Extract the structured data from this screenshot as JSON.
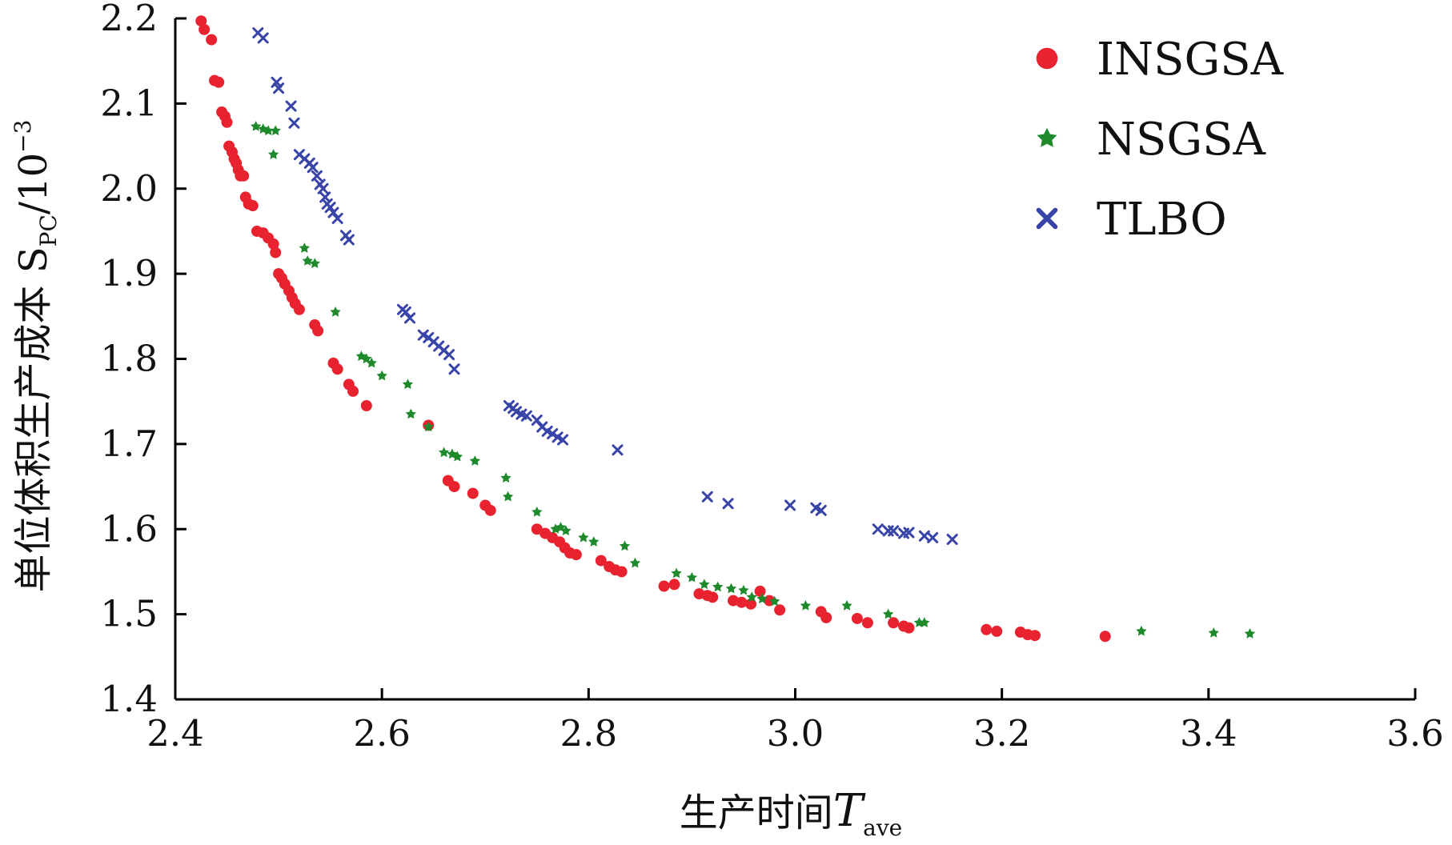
{
  "chart_data": {
    "type": "scatter",
    "xlabel": "生产时间",
    "xlabel_symbol": "T",
    "xlabel_subscript": "ave",
    "ylabel": "单位体积生产成本 S",
    "ylabel_subscript": "PC",
    "ylabel_unit": "/10",
    "ylabel_unit_exp": "−3",
    "xlim": [
      2.4,
      3.6
    ],
    "ylim": [
      1.4,
      2.2
    ],
    "x_ticks": [
      "2.4",
      "2.6",
      "2.8",
      "3.0",
      "3.2",
      "3.4",
      "3.6"
    ],
    "y_ticks": [
      "1.4",
      "1.5",
      "1.6",
      "1.7",
      "1.8",
      "1.9",
      "2.0",
      "2.1",
      "2.2"
    ],
    "grid": false,
    "legend_position": "top-right",
    "series": [
      {
        "name": "INSGSA",
        "color": "#e8222e",
        "marker": "circle",
        "points": [
          [
            2.425,
            2.197
          ],
          [
            2.428,
            2.187
          ],
          [
            2.435,
            2.175
          ],
          [
            2.438,
            2.127
          ],
          [
            2.442,
            2.125
          ],
          [
            2.445,
            2.09
          ],
          [
            2.448,
            2.085
          ],
          [
            2.45,
            2.078
          ],
          [
            2.452,
            2.05
          ],
          [
            2.455,
            2.043
          ],
          [
            2.457,
            2.035
          ],
          [
            2.459,
            2.03
          ],
          [
            2.461,
            2.022
          ],
          [
            2.463,
            2.015
          ],
          [
            2.466,
            2.015
          ],
          [
            2.468,
            1.99
          ],
          [
            2.471,
            1.982
          ],
          [
            2.475,
            1.98
          ],
          [
            2.479,
            1.95
          ],
          [
            2.485,
            1.948
          ],
          [
            2.49,
            1.942
          ],
          [
            2.495,
            1.935
          ],
          [
            2.497,
            1.925
          ],
          [
            2.5,
            1.9
          ],
          [
            2.503,
            1.895
          ],
          [
            2.506,
            1.888
          ],
          [
            2.51,
            1.88
          ],
          [
            2.513,
            1.872
          ],
          [
            2.516,
            1.865
          ],
          [
            2.52,
            1.858
          ],
          [
            2.535,
            1.84
          ],
          [
            2.538,
            1.833
          ],
          [
            2.553,
            1.795
          ],
          [
            2.557,
            1.788
          ],
          [
            2.568,
            1.77
          ],
          [
            2.572,
            1.762
          ],
          [
            2.585,
            1.745
          ],
          [
            2.645,
            1.722
          ],
          [
            2.664,
            1.657
          ],
          [
            2.67,
            1.65
          ],
          [
            2.688,
            1.642
          ],
          [
            2.7,
            1.628
          ],
          [
            2.705,
            1.622
          ],
          [
            2.75,
            1.6
          ],
          [
            2.758,
            1.595
          ],
          [
            2.765,
            1.59
          ],
          [
            2.772,
            1.585
          ],
          [
            2.777,
            1.578
          ],
          [
            2.782,
            1.572
          ],
          [
            2.788,
            1.57
          ],
          [
            2.812,
            1.563
          ],
          [
            2.82,
            1.556
          ],
          [
            2.826,
            1.552
          ],
          [
            2.832,
            1.55
          ],
          [
            2.873,
            1.533
          ],
          [
            2.883,
            1.535
          ],
          [
            2.907,
            1.524
          ],
          [
            2.915,
            1.522
          ],
          [
            2.92,
            1.52
          ],
          [
            2.94,
            1.516
          ],
          [
            2.948,
            1.514
          ],
          [
            2.957,
            1.512
          ],
          [
            2.966,
            1.527
          ],
          [
            2.975,
            1.516
          ],
          [
            2.985,
            1.505
          ],
          [
            3.025,
            1.503
          ],
          [
            3.03,
            1.496
          ],
          [
            3.06,
            1.495
          ],
          [
            3.07,
            1.49
          ],
          [
            3.095,
            1.49
          ],
          [
            3.105,
            1.486
          ],
          [
            3.11,
            1.484
          ],
          [
            3.185,
            1.482
          ],
          [
            3.195,
            1.48
          ],
          [
            3.218,
            1.479
          ],
          [
            3.225,
            1.476
          ],
          [
            3.232,
            1.475
          ],
          [
            3.3,
            1.474
          ]
        ]
      },
      {
        "name": "NSGSA",
        "color": "#1f8a2c",
        "marker": "star",
        "points": [
          [
            2.478,
            2.073
          ],
          [
            2.485,
            2.07
          ],
          [
            2.49,
            2.068
          ],
          [
            2.497,
            2.068
          ],
          [
            2.495,
            2.04
          ],
          [
            2.525,
            1.93
          ],
          [
            2.528,
            1.915
          ],
          [
            2.535,
            1.912
          ],
          [
            2.555,
            1.855
          ],
          [
            2.58,
            1.803
          ],
          [
            2.585,
            1.8
          ],
          [
            2.59,
            1.795
          ],
          [
            2.6,
            1.78
          ],
          [
            2.625,
            1.77
          ],
          [
            2.628,
            1.735
          ],
          [
            2.645,
            1.72
          ],
          [
            2.66,
            1.69
          ],
          [
            2.668,
            1.688
          ],
          [
            2.673,
            1.685
          ],
          [
            2.69,
            1.68
          ],
          [
            2.72,
            1.66
          ],
          [
            2.722,
            1.638
          ],
          [
            2.75,
            1.62
          ],
          [
            2.768,
            1.6
          ],
          [
            2.773,
            1.602
          ],
          [
            2.778,
            1.598
          ],
          [
            2.795,
            1.59
          ],
          [
            2.805,
            1.585
          ],
          [
            2.835,
            1.58
          ],
          [
            2.845,
            1.56
          ],
          [
            2.885,
            1.548
          ],
          [
            2.9,
            1.543
          ],
          [
            2.912,
            1.535
          ],
          [
            2.925,
            1.532
          ],
          [
            2.938,
            1.53
          ],
          [
            2.95,
            1.528
          ],
          [
            2.958,
            1.52
          ],
          [
            2.968,
            1.518
          ],
          [
            2.98,
            1.515
          ],
          [
            3.01,
            1.51
          ],
          [
            3.05,
            1.51
          ],
          [
            3.09,
            1.5
          ],
          [
            3.12,
            1.49
          ],
          [
            3.125,
            1.49
          ],
          [
            3.335,
            1.48
          ],
          [
            3.405,
            1.478
          ],
          [
            3.44,
            1.477
          ]
        ]
      },
      {
        "name": "TLBO",
        "color": "#3844a8",
        "marker": "x",
        "points": [
          [
            2.48,
            2.183
          ],
          [
            2.485,
            2.177
          ],
          [
            2.498,
            2.125
          ],
          [
            2.5,
            2.118
          ],
          [
            2.512,
            2.097
          ],
          [
            2.515,
            2.077
          ],
          [
            2.52,
            2.04
          ],
          [
            2.525,
            2.035
          ],
          [
            2.53,
            2.03
          ],
          [
            2.533,
            2.025
          ],
          [
            2.537,
            2.015
          ],
          [
            2.54,
            2.005
          ],
          [
            2.543,
            2.0
          ],
          [
            2.545,
            1.99
          ],
          [
            2.547,
            1.982
          ],
          [
            2.55,
            1.978
          ],
          [
            2.553,
            1.972
          ],
          [
            2.557,
            1.965
          ],
          [
            2.565,
            1.945
          ],
          [
            2.568,
            1.94
          ],
          [
            2.62,
            1.858
          ],
          [
            2.623,
            1.855
          ],
          [
            2.627,
            1.848
          ],
          [
            2.64,
            1.828
          ],
          [
            2.645,
            1.825
          ],
          [
            2.65,
            1.82
          ],
          [
            2.655,
            1.815
          ],
          [
            2.66,
            1.81
          ],
          [
            2.665,
            1.805
          ],
          [
            2.67,
            1.788
          ],
          [
            2.723,
            1.745
          ],
          [
            2.727,
            1.742
          ],
          [
            2.73,
            1.738
          ],
          [
            2.735,
            1.735
          ],
          [
            2.74,
            1.733
          ],
          [
            2.75,
            1.728
          ],
          [
            2.755,
            1.72
          ],
          [
            2.76,
            1.715
          ],
          [
            2.765,
            1.712
          ],
          [
            2.77,
            1.708
          ],
          [
            2.775,
            1.705
          ],
          [
            2.828,
            1.693
          ],
          [
            2.915,
            1.638
          ],
          [
            2.935,
            1.63
          ],
          [
            2.995,
            1.628
          ],
          [
            3.02,
            1.625
          ],
          [
            3.025,
            1.622
          ],
          [
            3.08,
            1.6
          ],
          [
            3.09,
            1.598
          ],
          [
            3.095,
            1.598
          ],
          [
            3.105,
            1.595
          ],
          [
            3.11,
            1.596
          ],
          [
            3.125,
            1.592
          ],
          [
            3.133,
            1.59
          ],
          [
            3.152,
            1.588
          ]
        ]
      }
    ]
  }
}
